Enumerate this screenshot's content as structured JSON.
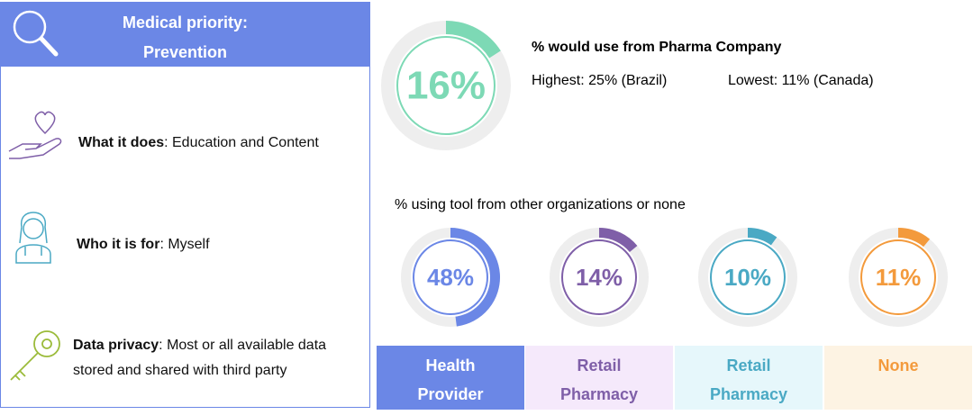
{
  "panel": {
    "title_lines": [
      "Medical priority:",
      "Prevention"
    ],
    "items": [
      {
        "label": "What it does",
        "text": ": Education and Content"
      },
      {
        "label": "Who it is for",
        "text": ": Myself"
      },
      {
        "label": "Data privacy",
        "text": ": Most or all available data stored and shared with third party"
      }
    ]
  },
  "chart_data": [
    {
      "type": "donut",
      "title": "% would use from Pharma Company",
      "values": [
        16
      ],
      "value_labels": [
        "16%"
      ],
      "color": "#7dd9b5",
      "annotations": [
        "Highest: 25% (Brazil)",
        "Lowest: 11% (Canada)"
      ]
    },
    {
      "type": "donut",
      "title": "% using tool from other organizations or none",
      "categories": [
        "Health Provider",
        "Retail Pharmacy",
        "Retail Pharmacy",
        "None"
      ],
      "values": [
        48,
        14,
        10,
        11
      ],
      "value_labels": [
        "48%",
        "14%",
        "10%",
        "11%"
      ],
      "colors": [
        "#6b87e6",
        "#7f5fa8",
        "#4aa9c4",
        "#f39a3c"
      ]
    }
  ]
}
